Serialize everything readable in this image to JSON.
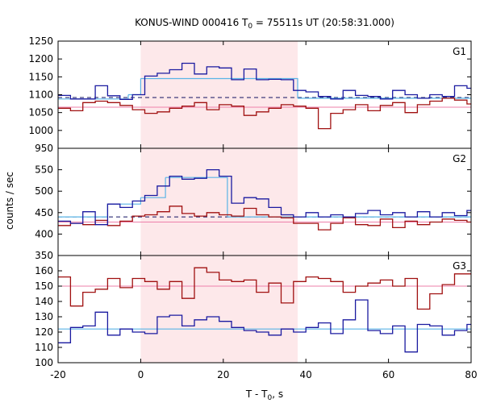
{
  "chart_data": {
    "type": "line",
    "title_main": "KONUS-WIND 000416 T",
    "title_sub": "0",
    "title_rest": " = 75511s UT (20:58:31.000)",
    "ylabel": "counts / sec",
    "xlabel_main": "T - T",
    "xlabel_sub": "0",
    "xlabel_rest": ", s",
    "xlim": [
      -20,
      80
    ],
    "xticks": [
      "-20",
      "0",
      "20",
      "40",
      "60",
      "80"
    ],
    "xtick_values": [
      -20,
      0,
      20,
      40,
      60,
      80
    ],
    "shaded_interval": [
      0,
      38
    ],
    "colors": {
      "blue": "#1a1aa0",
      "red": "#a01010",
      "cyan": "#5ab4e6",
      "pink": "#ee7faa",
      "shade": "#fde8ea",
      "dashed": "#101060"
    },
    "panels": [
      {
        "name": "G1",
        "ylim": [
          950,
          1250
        ],
        "yticks": [
          "950",
          "1000",
          "1050",
          "1100",
          "1150",
          "1200",
          "1250"
        ],
        "ytick_values": [
          950,
          1000,
          1050,
          1100,
          1150,
          1200,
          1250
        ],
        "bin_edges": [
          -20,
          -17,
          -14,
          -11,
          -8,
          -5,
          -2,
          1,
          4,
          7,
          10,
          13,
          16,
          19,
          22,
          25,
          28,
          31,
          34,
          37,
          40,
          43,
          46,
          49,
          52,
          55,
          58,
          61,
          64,
          67,
          70,
          73,
          76,
          79,
          80
        ],
        "blue_values": [
          1098,
          1088,
          1088,
          1125,
          1097,
          1087,
          1100,
          1152,
          1160,
          1170,
          1188,
          1158,
          1178,
          1175,
          1142,
          1172,
          1142,
          1143,
          1142,
          1112,
          1108,
          1095,
          1088,
          1112,
          1098,
          1095,
          1088,
          1112,
          1100,
          1090,
          1100,
          1095,
          1125,
          1118
        ],
        "red_values": [
          1062,
          1055,
          1078,
          1082,
          1078,
          1070,
          1058,
          1048,
          1052,
          1062,
          1068,
          1078,
          1058,
          1072,
          1068,
          1042,
          1052,
          1062,
          1072,
          1068,
          1062,
          1005,
          1048,
          1058,
          1072,
          1055,
          1070,
          1078,
          1050,
          1072,
          1082,
          1090,
          1085,
          1074
        ],
        "cyan_steps": [
          [
            -20,
            -3,
            1088
          ],
          [
            -3,
            0,
            1100
          ],
          [
            0,
            38,
            1145
          ],
          [
            38,
            80,
            1090
          ]
        ],
        "pink_level": 1065,
        "dashed_level": 1092
      },
      {
        "name": "G2",
        "ylim": [
          350,
          600
        ],
        "yticks": [
          "350",
          "400",
          "450",
          "500",
          "550"
        ],
        "ytick_values": [
          350,
          400,
          450,
          500,
          550
        ],
        "bin_edges": [
          -20,
          -17,
          -14,
          -11,
          -8,
          -5,
          -2,
          1,
          4,
          7,
          10,
          13,
          16,
          19,
          22,
          25,
          28,
          31,
          34,
          37,
          40,
          43,
          46,
          49,
          52,
          55,
          58,
          61,
          64,
          67,
          70,
          73,
          76,
          79,
          80
        ],
        "blue_values": [
          430,
          425,
          452,
          422,
          470,
          462,
          477,
          490,
          512,
          535,
          528,
          530,
          550,
          535,
          472,
          485,
          482,
          462,
          445,
          440,
          450,
          440,
          445,
          440,
          448,
          455,
          445,
          450,
          440,
          452,
          440,
          450,
          443,
          455
        ],
        "red_values": [
          420,
          425,
          422,
          432,
          420,
          430,
          442,
          445,
          452,
          465,
          448,
          442,
          450,
          445,
          442,
          460,
          445,
          440,
          438,
          425,
          425,
          410,
          425,
          438,
          422,
          420,
          435,
          415,
          430,
          422,
          428,
          435,
          432,
          428
        ],
        "cyan_steps": [
          [
            -20,
            -8,
            440
          ],
          [
            -8,
            0,
            470
          ],
          [
            0,
            6,
            485
          ],
          [
            6,
            21,
            532
          ],
          [
            21,
            38,
            440
          ],
          [
            38,
            80,
            440
          ]
        ],
        "pink_level": 428,
        "dashed_level": 440
      },
      {
        "name": "G3",
        "ylim": [
          100,
          170
        ],
        "yticks": [
          "100",
          "110",
          "120",
          "130",
          "140",
          "150",
          "160"
        ],
        "ytick_values": [
          100,
          110,
          120,
          130,
          140,
          150,
          160
        ],
        "bin_edges": [
          -20,
          -17,
          -14,
          -11,
          -8,
          -5,
          -2,
          1,
          4,
          7,
          10,
          13,
          16,
          19,
          22,
          25,
          28,
          31,
          34,
          37,
          40,
          43,
          46,
          49,
          52,
          55,
          58,
          61,
          64,
          67,
          70,
          73,
          76,
          79,
          80
        ],
        "blue_values": [
          113,
          123,
          124,
          133,
          118,
          122,
          120,
          119,
          130,
          131,
          124,
          128,
          130,
          127,
          123,
          121,
          120,
          118,
          122,
          120,
          123,
          126,
          119,
          128,
          141,
          121,
          119,
          124,
          107,
          125,
          124,
          118,
          121,
          125
        ],
        "red_values": [
          156,
          137,
          146,
          148,
          155,
          149,
          155,
          153,
          148,
          153,
          142,
          162,
          159,
          154,
          153,
          154,
          146,
          152,
          139,
          153,
          156,
          155,
          153,
          146,
          150,
          152,
          154,
          150,
          155,
          135,
          145,
          151,
          158,
          158
        ],
        "cyan_steps": [
          [
            -20,
            80,
            122
          ]
        ],
        "pink_level": 150,
        "dashed_level": null
      }
    ]
  }
}
